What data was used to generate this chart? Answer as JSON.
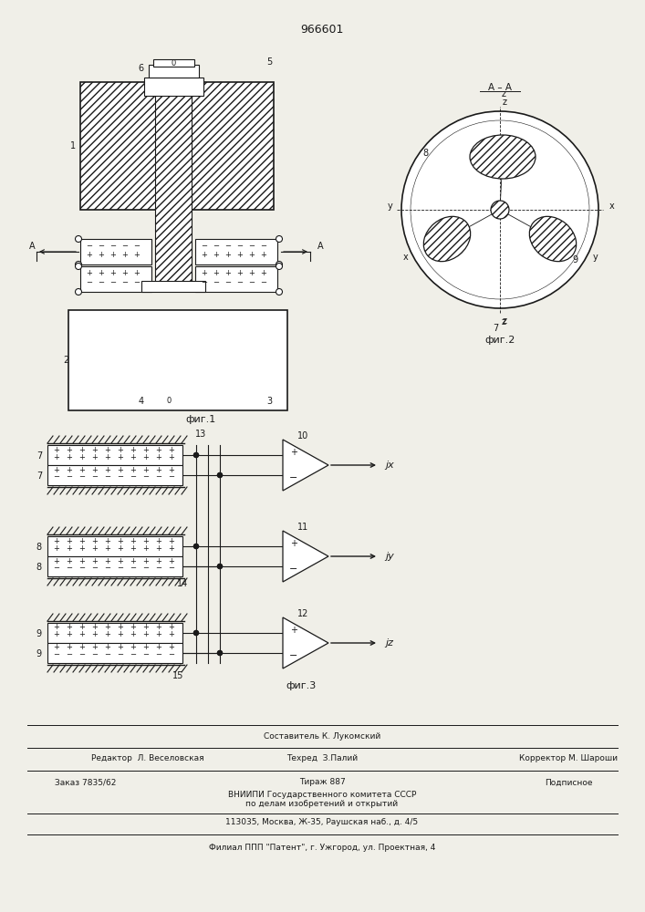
{
  "patent_number": "966601",
  "bg_color": "#f0efe8",
  "line_color": "#1a1a1a",
  "footer_text": [
    [
      "center",
      188,
      "Составитель К. Лукомский"
    ],
    [
      "left",
      30,
      "Редактор  Л. Веселовская"
    ],
    [
      "center",
      188,
      "Техред  З.Палий"
    ],
    [
      "right",
      677,
      "Корректор М. Шароши"
    ],
    [
      "left",
      30,
      "Заказ 7835/62"
    ],
    [
      "center",
      353,
      "Тираж 887"
    ],
    [
      "right",
      677,
      "Подписное"
    ],
    [
      "center",
      353,
      "ВНИИПИ Государственного комитета СССР"
    ],
    [
      "center",
      353,
      "по делам изобретений и открытий"
    ],
    [
      "center",
      353,
      "113035, Москва, Ж-35, Раушская наб., д. 4/5"
    ],
    [
      "center",
      353,
      "Филиал ППП \"Патент\", г. Ужгород, ул. Проектная, 4"
    ]
  ]
}
